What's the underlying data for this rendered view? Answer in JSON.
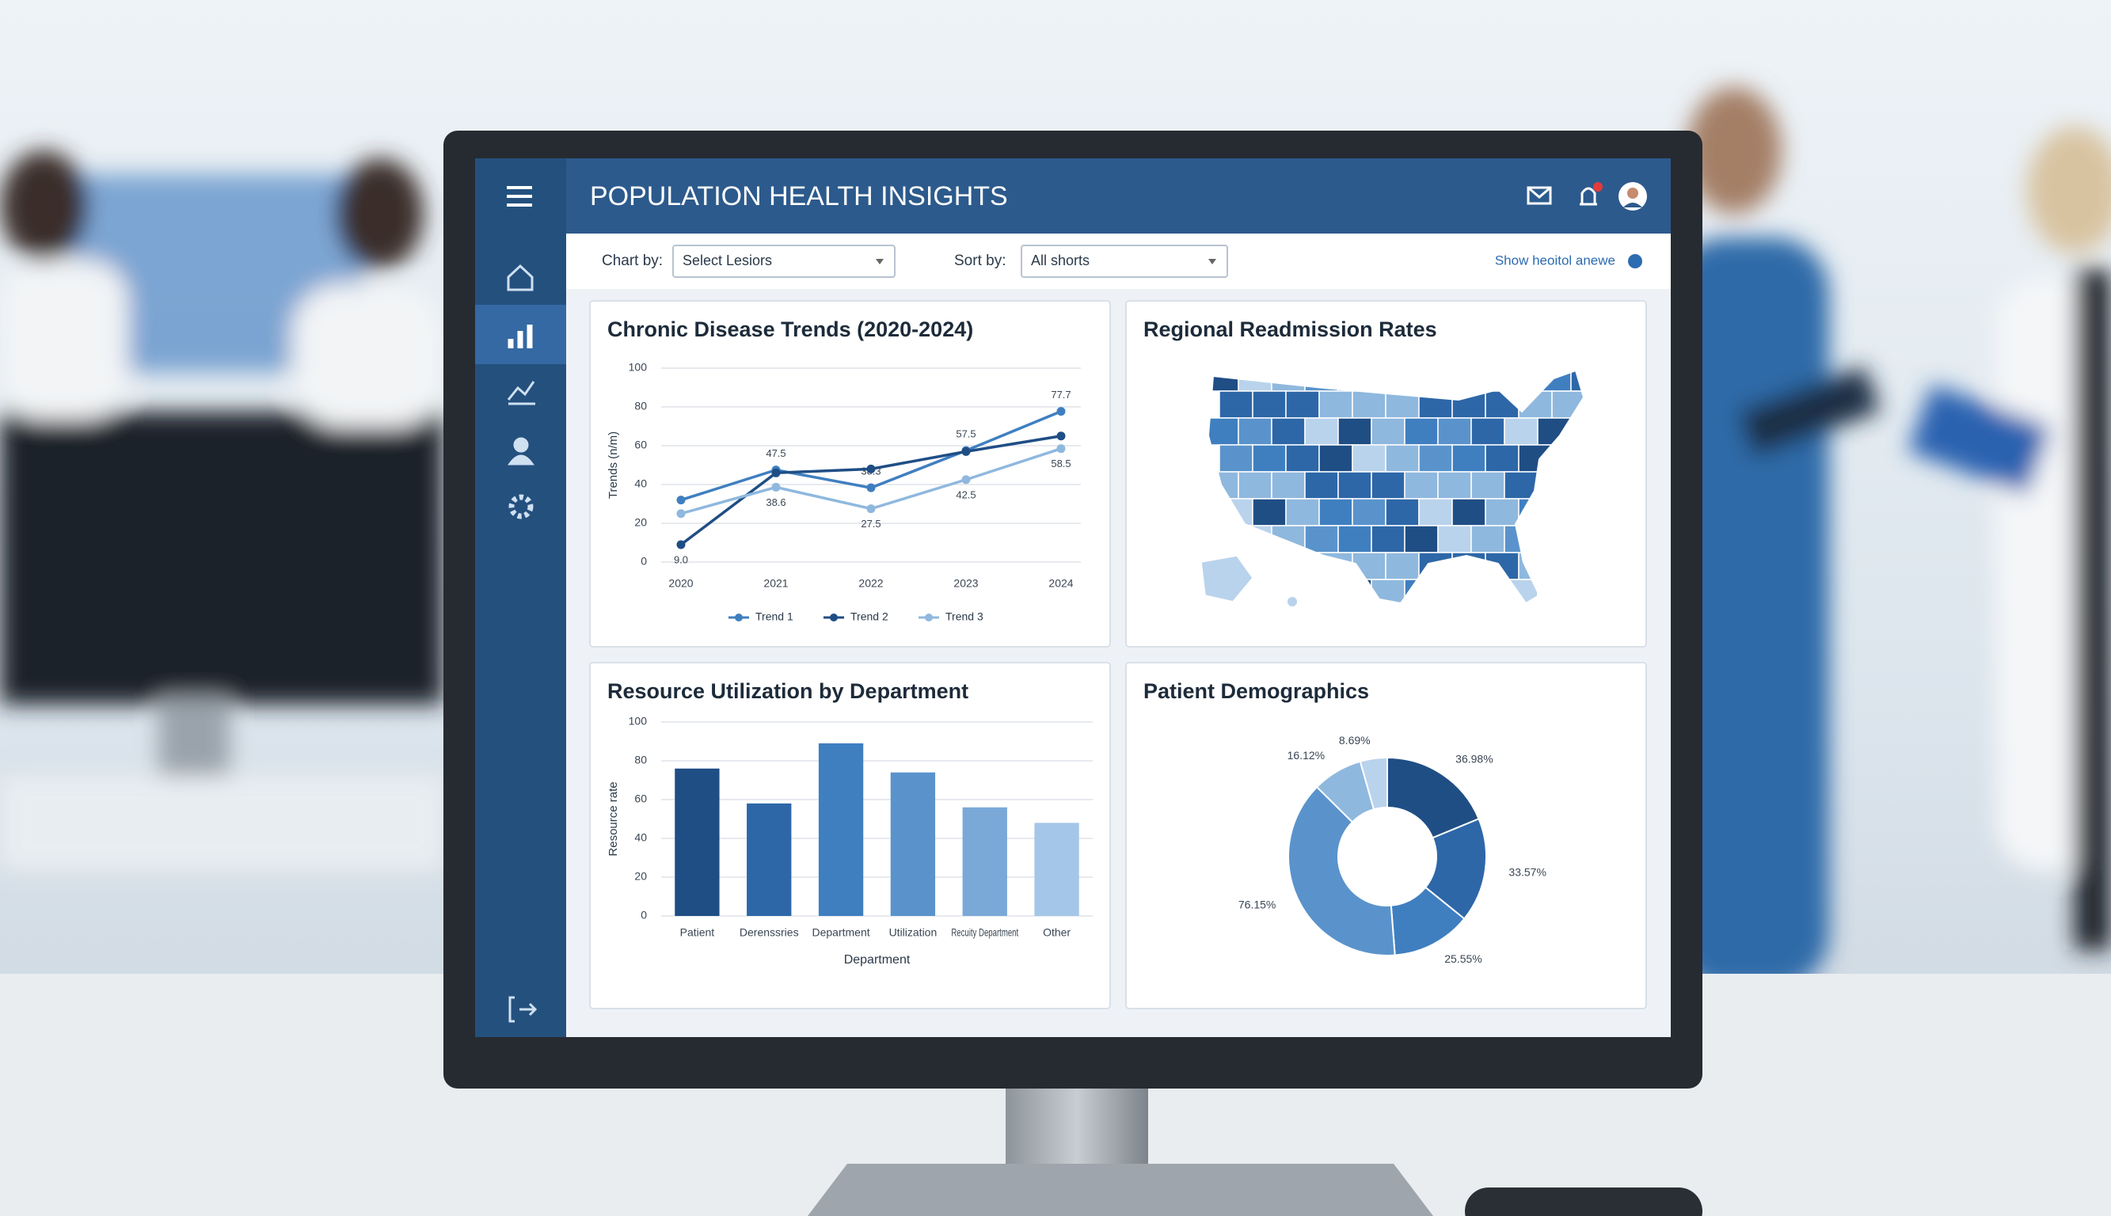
{
  "header": {
    "title": "POPULATION HEALTH INSIGHTS"
  },
  "toolbar": {
    "chart_by_label": "Chart by:",
    "chart_by_value": "Select Lesiors",
    "sort_by_label": "Sort by:",
    "sort_by_value": "All shorts",
    "link": "Show heoitol anewe"
  },
  "chart_data": [
    {
      "type": "line",
      "title": "Chronic Disease Trends (2020-2024)",
      "y_label": "Trends (n/m)",
      "categories": [
        "2020",
        "2021",
        "2022",
        "2023",
        "2024"
      ],
      "ylim": [
        0,
        100
      ],
      "yticks": [
        0,
        20,
        40,
        60,
        80,
        100
      ],
      "grid": true,
      "series": [
        {
          "name": "Trend 1",
          "color": "#3f7fc0",
          "values": [
            32,
            47.5,
            38.3,
            57.5,
            77.7
          ],
          "value_labels": [
            null,
            "47.5",
            "38.3",
            "57.5",
            "77.7"
          ]
        },
        {
          "name": "Trend 2",
          "color": "#1f4e85",
          "values": [
            9.0,
            46,
            48,
            57,
            65
          ],
          "value_labels": [
            "9.0",
            null,
            null,
            null,
            null
          ]
        },
        {
          "name": "Trend 3",
          "color": "#8fb8de",
          "values": [
            25,
            38.6,
            27.5,
            42.5,
            58.5
          ],
          "value_labels": [
            null,
            "38.6",
            "27.5",
            "42.5",
            "58.5"
          ]
        }
      ]
    },
    {
      "type": "map",
      "title": "Regional Readmission Rates"
    },
    {
      "type": "bar",
      "title": "Resource Utilization by Department",
      "y_label": "Resource rate",
      "x_label": "Department",
      "categories": [
        "Patient",
        "Derenssries",
        "Department",
        "Utilization",
        "Recuity Department",
        "Other"
      ],
      "values": [
        76,
        58,
        89,
        74,
        56,
        48
      ],
      "colors": [
        "#1f4e85",
        "#2d67a8",
        "#3f7fc0",
        "#5a93cc",
        "#7aa9d8",
        "#a4c6e8"
      ],
      "ylim": [
        0,
        100
      ],
      "yticks": [
        0,
        20,
        40,
        60,
        80,
        100
      ],
      "grid": true
    },
    {
      "type": "pie",
      "title": "Patient Demographics",
      "donut": true,
      "values": [
        36.98,
        33.57,
        25.55,
        76.15,
        16.12,
        8.69
      ],
      "value_labels": [
        "36.98%",
        "33.57%",
        "25.55%",
        "76.15%",
        "16.12%",
        "8.69%"
      ],
      "colors": [
        "#1f4e85",
        "#2d67a8",
        "#3f7fc0",
        "#5a93cc",
        "#8fb8de",
        "#b9d3ec"
      ]
    }
  ]
}
